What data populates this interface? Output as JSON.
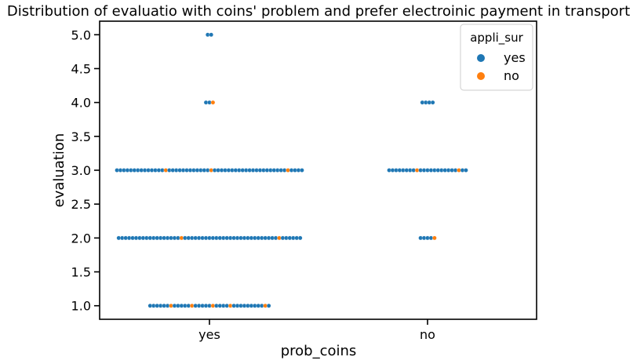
{
  "chart_data": {
    "type": "scatter",
    "title": "Distribution of evaluatio with coins' problem and prefer electroinic payment in transport",
    "xlabel": "prob_coins",
    "ylabel": "evaluation",
    "categories": [
      "yes",
      "no"
    ],
    "ylim": [
      0.8,
      5.2
    ],
    "yticks": [
      "1.0",
      "1.5",
      "2.0",
      "2.5",
      "3.0",
      "3.5",
      "4.0",
      "4.5",
      "5.0"
    ],
    "grid": false,
    "legend": {
      "title": "appli_sur",
      "placement": "top-right",
      "entries": [
        {
          "label": "yes",
          "color": "#1f77b4"
        },
        {
          "label": "no",
          "color": "#ff7f0e"
        }
      ]
    },
    "counts": [
      {
        "prob_coins": "yes",
        "evaluation": 5.0,
        "yes": 2,
        "no": 0
      },
      {
        "prob_coins": "yes",
        "evaluation": 4.0,
        "yes": 2,
        "no": 1
      },
      {
        "prob_coins": "yes",
        "evaluation": 3.0,
        "yes": 51,
        "no": 3
      },
      {
        "prob_coins": "yes",
        "evaluation": 2.0,
        "yes": 51,
        "no": 2
      },
      {
        "prob_coins": "yes",
        "evaluation": 1.0,
        "yes": 30,
        "no": 5
      },
      {
        "prob_coins": "no",
        "evaluation": 4.0,
        "yes": 4,
        "no": 0
      },
      {
        "prob_coins": "no",
        "evaluation": 3.0,
        "yes": 21,
        "no": 2
      },
      {
        "prob_coins": "no",
        "evaluation": 2.0,
        "yes": 4,
        "no": 1
      }
    ]
  }
}
